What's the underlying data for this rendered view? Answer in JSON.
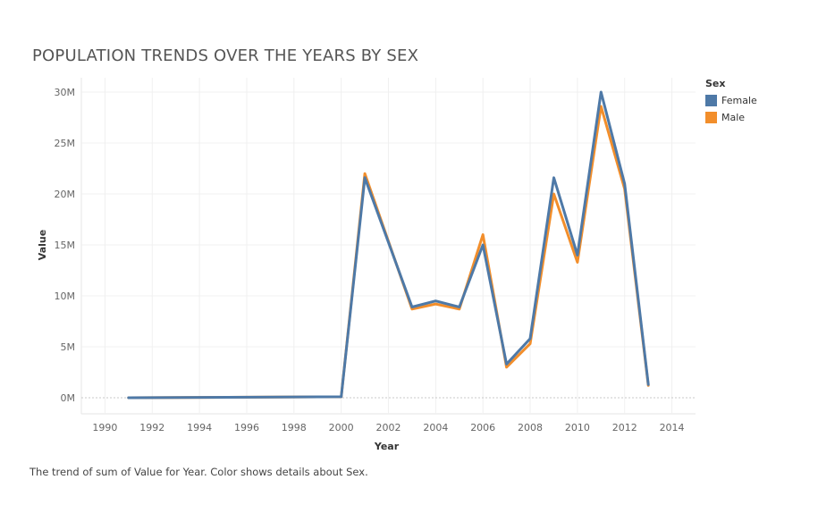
{
  "chart_data": {
    "type": "line",
    "title": "POPULATION TRENDS OVER THE YEARS BY SEX",
    "caption": "The trend of sum of Value for Year.  Color shows details about Sex.",
    "xlabel": "Year",
    "ylabel": "Value",
    "xlim": [
      1989,
      2015
    ],
    "ylim": [
      0,
      30000000
    ],
    "x_ticks": [
      1990,
      1992,
      1994,
      1996,
      1998,
      2000,
      2002,
      2004,
      2006,
      2008,
      2010,
      2012,
      2014
    ],
    "y_ticks": [
      {
        "value": 0,
        "label": "0M"
      },
      {
        "value": 5000000,
        "label": "5M"
      },
      {
        "value": 10000000,
        "label": "10M"
      },
      {
        "value": 15000000,
        "label": "15M"
      },
      {
        "value": 20000000,
        "label": "20M"
      },
      {
        "value": 25000000,
        "label": "25M"
      },
      {
        "value": 30000000,
        "label": "30M"
      }
    ],
    "legend_title": "Sex",
    "legend_position": "top-right",
    "grid": true,
    "series": [
      {
        "name": "Male",
        "color": "#F28E2B",
        "x": [
          1991,
          2000,
          2001,
          2003,
          2004,
          2005,
          2006,
          2007,
          2008,
          2009,
          2010,
          2011,
          2012,
          2013
        ],
        "y": [
          0,
          100000,
          22000000,
          8700000,
          9200000,
          8700000,
          16000000,
          3000000,
          5300000,
          20000000,
          13300000,
          28600000,
          20500000,
          1200000
        ]
      },
      {
        "name": "Female",
        "color": "#4E79A7",
        "x": [
          1991,
          2000,
          2001,
          2003,
          2004,
          2005,
          2006,
          2007,
          2008,
          2009,
          2010,
          2011,
          2012,
          2013
        ],
        "y": [
          0,
          100000,
          21600000,
          8900000,
          9500000,
          8900000,
          15000000,
          3300000,
          5800000,
          21600000,
          14000000,
          30000000,
          21000000,
          1300000
        ]
      }
    ]
  }
}
